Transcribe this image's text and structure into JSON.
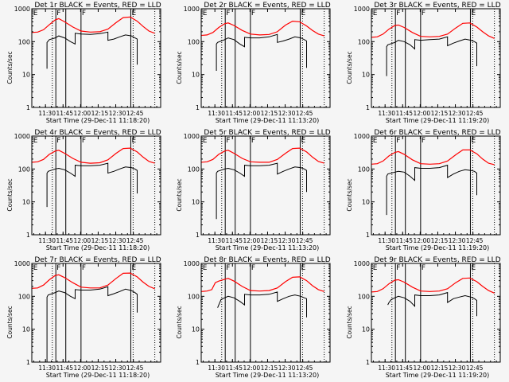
{
  "chart_data": {
    "type": "line",
    "layout": "3x3 grid",
    "shared": {
      "xlabel": "Start Time (29-Dec-11 11:18:20)",
      "ylabel": "Counts/sec",
      "yscale": "log",
      "ylim": [
        1,
        1000
      ],
      "yticks": [
        "1",
        "10",
        "100",
        "1000"
      ],
      "ytick_values": [
        1,
        10,
        100,
        1000
      ],
      "x_start": "11:18:20",
      "x_range_minutes": [
        0,
        110
      ],
      "xticks": [
        "11:30",
        "11:45",
        "12:00",
        "12:15",
        "12:30",
        "12:45"
      ],
      "xtick_minutes": [
        11.67,
        26.67,
        41.67,
        56.67,
        71.67,
        86.67
      ],
      "series_colors": {
        "events": "#000000",
        "lld": "#ff0000"
      },
      "markers": [
        {
          "label": "E",
          "minute": 0.5,
          "style": "none"
        },
        {
          "label": "",
          "minute": 17.5,
          "style": "dotted"
        },
        {
          "label": "F",
          "minute": 20.5,
          "style": "solid"
        },
        {
          "label": "",
          "minute": 29,
          "style": "solid"
        },
        {
          "label": "F",
          "minute": 42,
          "style": "solid"
        },
        {
          "label": "E",
          "minute": 84.5,
          "style": "solid"
        },
        {
          "label": "",
          "minute": 86.5,
          "style": "dotted"
        },
        {
          "label": "",
          "minute": 105,
          "style": "dotted"
        }
      ],
      "grid": false,
      "legend": "in title"
    },
    "panels": [
      {
        "title": "Det 1r BLACK = Events, RED = LLD",
        "xlabel": "Start Time (29-Dec-11 11:18:20)",
        "lld": {
          "x": [
            0,
            5,
            10,
            15,
            20,
            23,
            28,
            35,
            42,
            50,
            58,
            65,
            72,
            78,
            84,
            90,
            95,
            100,
            105
          ],
          "y": [
            190,
            195,
            230,
            330,
            460,
            500,
            400,
            280,
            210,
            195,
            200,
            240,
            380,
            540,
            560,
            420,
            290,
            210,
            180
          ]
        },
        "events": {
          "x": [
            13,
            13,
            15,
            20,
            23,
            28,
            33,
            37,
            37,
            42,
            50,
            58,
            65,
            65,
            70,
            75,
            80,
            85,
            88,
            90,
            90
          ],
          "y": [
            15,
            95,
            115,
            130,
            150,
            130,
            100,
            85,
            180,
            170,
            165,
            175,
            195,
            110,
            120,
            140,
            160,
            150,
            130,
            120,
            20
          ]
        }
      },
      {
        "title": "Det 2r BLACK = Events, RED = LLD",
        "xlabel": "Start Time (29-Dec-11 11:13:20)",
        "lld": {
          "x": [
            0,
            5,
            10,
            15,
            20,
            23,
            28,
            35,
            42,
            50,
            58,
            65,
            72,
            78,
            84,
            90,
            95,
            100,
            105
          ],
          "y": [
            155,
            160,
            190,
            270,
            350,
            370,
            310,
            220,
            170,
            160,
            165,
            200,
            320,
            420,
            400,
            300,
            220,
            170,
            150
          ]
        },
        "events": {
          "x": [
            13,
            13,
            14,
            20,
            23,
            28,
            33,
            37,
            37,
            42,
            50,
            58,
            65,
            65,
            70,
            75,
            80,
            85,
            88,
            90,
            90
          ],
          "y": [
            13,
            85,
            95,
            115,
            130,
            115,
            85,
            70,
            135,
            130,
            130,
            140,
            165,
            95,
            105,
            120,
            140,
            130,
            115,
            105,
            16
          ]
        }
      },
      {
        "title": "Det 3r BLACK = Events, RED = LLD",
        "xlabel": "Start Time (29-Dec-11 11:19:20)",
        "lld": {
          "x": [
            0,
            5,
            10,
            15,
            20,
            23,
            28,
            35,
            42,
            50,
            58,
            65,
            72,
            78,
            84,
            90,
            95,
            100,
            105
          ],
          "y": [
            135,
            140,
            170,
            240,
            310,
            320,
            270,
            190,
            145,
            140,
            145,
            170,
            260,
            360,
            370,
            280,
            200,
            150,
            125
          ]
        },
        "events": {
          "x": [
            13,
            13,
            14,
            20,
            23,
            28,
            33,
            37,
            37,
            42,
            50,
            58,
            65,
            65,
            70,
            75,
            80,
            85,
            88,
            90,
            90
          ],
          "y": [
            9,
            70,
            80,
            95,
            110,
            100,
            80,
            60,
            115,
            110,
            115,
            120,
            140,
            75,
            90,
            105,
            120,
            110,
            100,
            90,
            18
          ]
        }
      },
      {
        "title": "Det 4r BLACK = Events, RED = LLD",
        "xlabel": "Start Time (29-Dec-11 11:18:20)",
        "lld": {
          "x": [
            0,
            5,
            10,
            15,
            20,
            23,
            28,
            35,
            42,
            50,
            58,
            65,
            72,
            78,
            84,
            90,
            95,
            100,
            105
          ],
          "y": [
            160,
            165,
            195,
            280,
            350,
            370,
            300,
            210,
            160,
            150,
            155,
            190,
            300,
            420,
            430,
            330,
            230,
            170,
            150
          ]
        },
        "events": {
          "x": [
            13,
            13,
            14,
            20,
            23,
            28,
            33,
            37,
            37,
            42,
            50,
            58,
            65,
            65,
            70,
            75,
            80,
            85,
            88,
            90,
            90
          ],
          "y": [
            7,
            75,
            85,
            100,
            105,
            95,
            75,
            60,
            130,
            125,
            125,
            130,
            150,
            75,
            85,
            100,
            115,
            110,
            100,
            90,
            18
          ]
        }
      },
      {
        "title": "Det 5r BLACK = Events, RED = LLD",
        "xlabel": "Start Time (29-Dec-11 11:13:20)",
        "lld": {
          "x": [
            0,
            5,
            10,
            15,
            20,
            23,
            28,
            35,
            42,
            50,
            58,
            65,
            72,
            78,
            84,
            90,
            95,
            100,
            105
          ],
          "y": [
            160,
            165,
            195,
            280,
            350,
            370,
            300,
            210,
            165,
            160,
            160,
            195,
            300,
            420,
            430,
            330,
            230,
            170,
            150
          ]
        },
        "events": {
          "x": [
            13,
            13,
            14,
            20,
            23,
            28,
            33,
            37,
            37,
            42,
            50,
            58,
            65,
            65,
            70,
            75,
            80,
            85,
            88,
            90,
            90
          ],
          "y": [
            3,
            75,
            85,
            100,
            105,
            95,
            75,
            60,
            130,
            125,
            125,
            130,
            150,
            70,
            85,
            100,
            115,
            110,
            100,
            90,
            20
          ]
        }
      },
      {
        "title": "Det 6r BLACK = Events, RED = LLD",
        "xlabel": "Start Time (29-Dec-11 11:19:20)",
        "lld": {
          "x": [
            0,
            5,
            10,
            15,
            20,
            23,
            28,
            35,
            42,
            50,
            58,
            65,
            72,
            78,
            84,
            90,
            95,
            100,
            105
          ],
          "y": [
            140,
            145,
            175,
            250,
            320,
            340,
            280,
            190,
            145,
            140,
            145,
            175,
            270,
            380,
            380,
            290,
            200,
            150,
            135
          ]
        },
        "events": {
          "x": [
            13,
            13,
            14,
            20,
            23,
            28,
            33,
            37,
            37,
            42,
            50,
            58,
            65,
            65,
            70,
            75,
            80,
            85,
            88,
            90,
            90
          ],
          "y": [
            4,
            60,
            70,
            80,
            85,
            80,
            60,
            45,
            110,
            105,
            105,
            110,
            130,
            55,
            70,
            85,
            95,
            90,
            85,
            75,
            16
          ]
        }
      },
      {
        "title": "Det 7r BLACK = Events, RED = LLD",
        "xlabel": "Start Time (29-Dec-11 11:18:20)",
        "lld": {
          "x": [
            0,
            5,
            10,
            15,
            20,
            23,
            28,
            35,
            42,
            50,
            58,
            65,
            72,
            78,
            84,
            90,
            95,
            100,
            105
          ],
          "y": [
            175,
            180,
            220,
            320,
            430,
            450,
            370,
            260,
            190,
            180,
            180,
            220,
            350,
            500,
            510,
            390,
            270,
            200,
            170
          ]
        },
        "events": {
          "x": [
            13,
            13,
            14,
            20,
            23,
            28,
            33,
            37,
            37,
            42,
            50,
            58,
            65,
            65,
            70,
            75,
            80,
            85,
            88,
            90,
            90
          ],
          "y": [
            1,
            95,
            110,
            130,
            145,
            130,
            100,
            85,
            160,
            155,
            155,
            165,
            195,
            105,
            120,
            140,
            165,
            150,
            130,
            115,
            32
          ]
        }
      },
      {
        "title": "Det 8r BLACK = Events, RED = LLD",
        "xlabel": "Start Time (29-Dec-11 11:13:20)",
        "lld": {
          "x": [
            0,
            5,
            9,
            12,
            15,
            20,
            23,
            28,
            35,
            42,
            50,
            58,
            65,
            72,
            78,
            84,
            90,
            95,
            100,
            105
          ],
          "y": [
            140,
            145,
            160,
            260,
            290,
            330,
            350,
            290,
            200,
            150,
            145,
            150,
            180,
            280,
            380,
            390,
            300,
            210,
            160,
            140
          ]
        },
        "events": {
          "x": [
            14,
            15,
            17,
            20,
            23,
            28,
            33,
            37,
            37,
            42,
            50,
            58,
            65,
            65,
            70,
            75,
            80,
            85,
            88,
            90,
            90
          ],
          "y": [
            45,
            55,
            80,
            90,
            100,
            90,
            70,
            55,
            115,
            110,
            110,
            115,
            135,
            70,
            85,
            100,
            110,
            100,
            90,
            85,
            23
          ]
        }
      },
      {
        "title": "Det 9r BLACK = Events, RED = LLD",
        "xlabel": "Start Time (29-Dec-11 11:19:20)",
        "lld": {
          "x": [
            0,
            5,
            10,
            15,
            20,
            23,
            28,
            35,
            42,
            50,
            58,
            65,
            72,
            78,
            84,
            90,
            95,
            100,
            105
          ],
          "y": [
            135,
            140,
            170,
            240,
            310,
            320,
            270,
            190,
            145,
            140,
            145,
            170,
            260,
            350,
            360,
            280,
            200,
            150,
            125
          ]
        },
        "events": {
          "x": [
            14,
            15,
            17,
            20,
            23,
            28,
            33,
            37,
            37,
            42,
            50,
            58,
            65,
            65,
            70,
            75,
            80,
            85,
            88,
            90,
            90
          ],
          "y": [
            55,
            65,
            80,
            90,
            100,
            90,
            70,
            50,
            110,
            105,
            105,
            110,
            130,
            65,
            85,
            95,
            105,
            95,
            85,
            75,
            25
          ]
        }
      }
    ]
  }
}
